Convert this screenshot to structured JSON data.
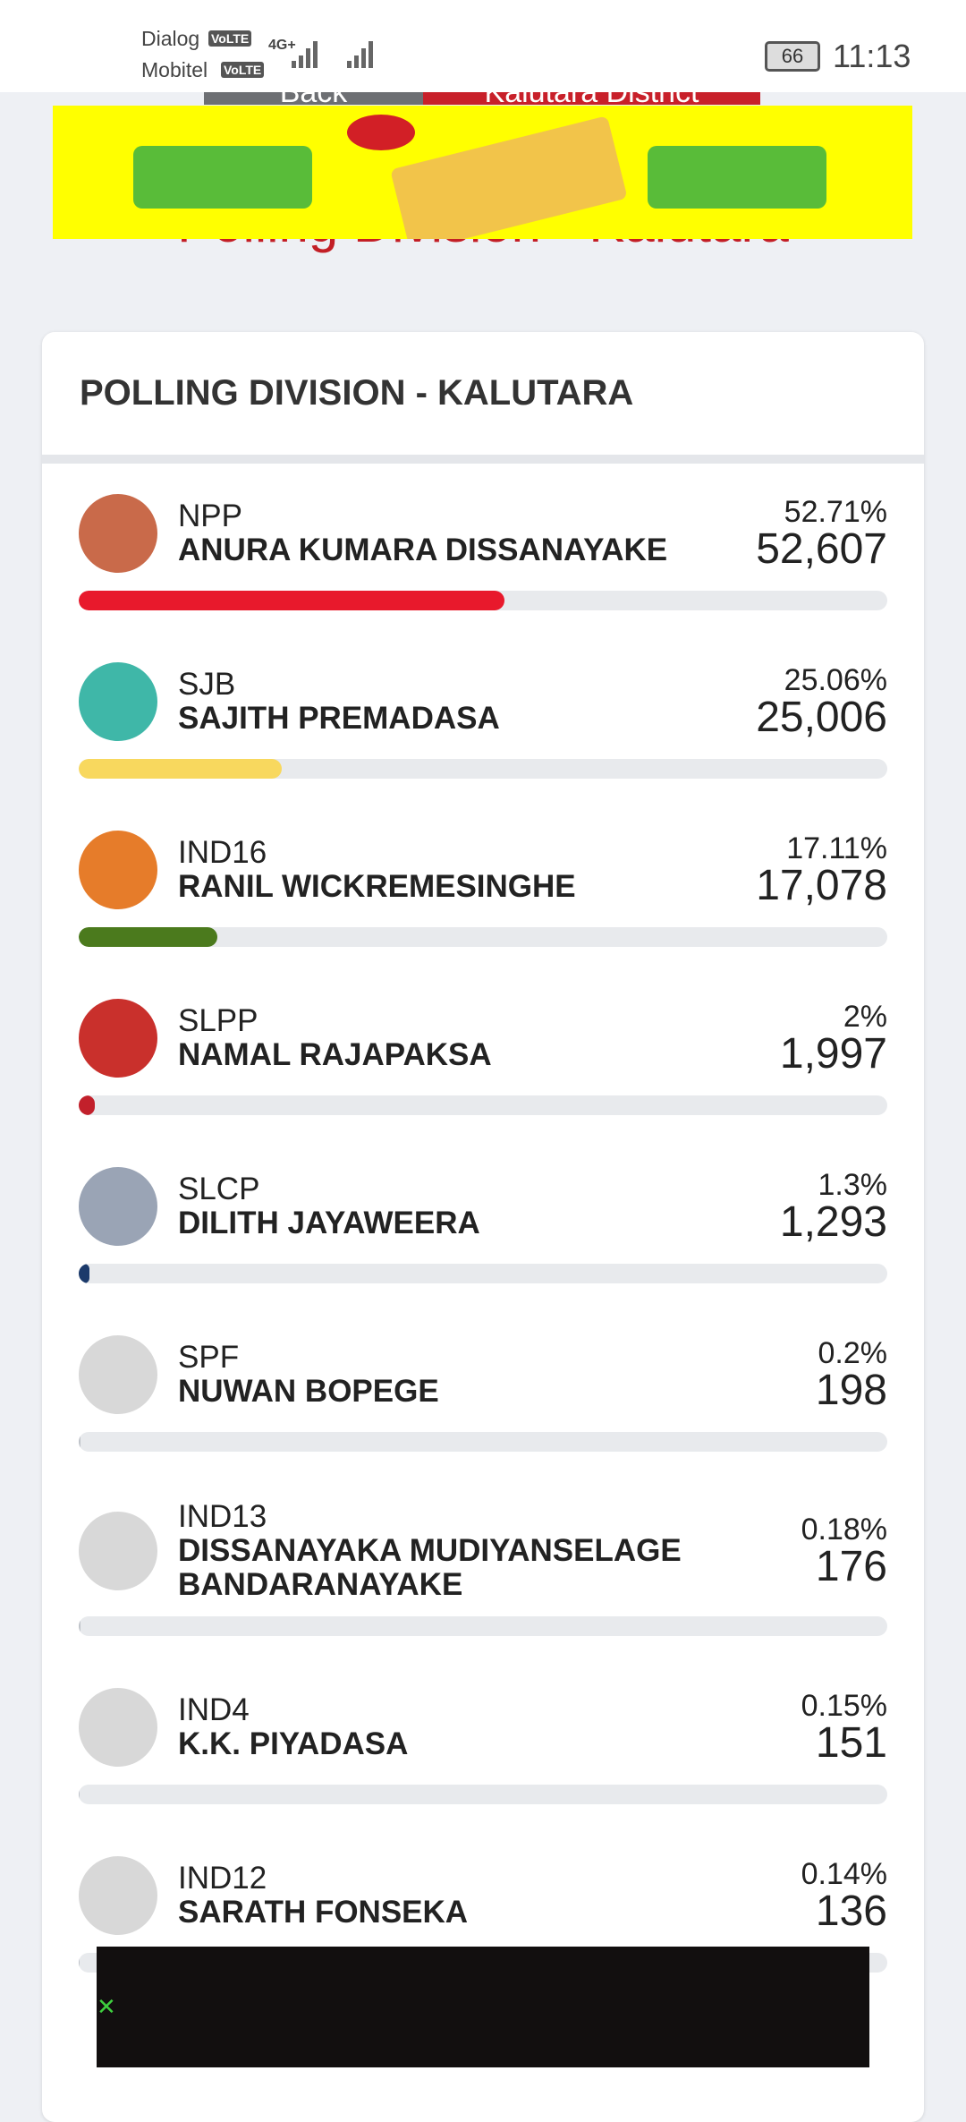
{
  "status_bar": {
    "carrier_1": "Dialog",
    "carrier_2": "Mobitel",
    "volte": "VoLTE",
    "network": "4G+",
    "battery": "66",
    "time": "11:13"
  },
  "nav": {
    "back": "Back",
    "district": "Kalutara District"
  },
  "page_title": "Polling Division - Kalutara",
  "card": {
    "title": "POLLING DIVISION - KALUTARA",
    "candidates": [
      {
        "party": "NPP",
        "name": "ANURA KUMARA DISSANAYAKE",
        "percent": 52.71,
        "percent_label": "52.71%",
        "votes": "52,607",
        "color": "#e8192c"
      },
      {
        "party": "SJB",
        "name": "SAJITH PREMADASA",
        "percent": 25.06,
        "percent_label": "25.06%",
        "votes": "25,006",
        "color": "#f8d85e"
      },
      {
        "party": "IND16",
        "name": "RANIL WICKREMESINGHE",
        "percent": 17.11,
        "percent_label": "17.11%",
        "votes": "17,078",
        "color": "#4b7a1d"
      },
      {
        "party": "SLPP",
        "name": "NAMAL RAJAPAKSA",
        "percent": 2,
        "percent_label": "2%",
        "votes": "1,997",
        "color": "#c2202b"
      },
      {
        "party": "SLCP",
        "name": "DILITH JAYAWEERA",
        "percent": 1.3,
        "percent_label": "1.3%",
        "votes": "1,293",
        "color": "#1c3a6b"
      },
      {
        "party": "SPF",
        "name": "NUWAN BOPEGE",
        "percent": 0.2,
        "percent_label": "0.2%",
        "votes": "198",
        "color": "#bfc3c9"
      },
      {
        "party": "IND13",
        "name": "DISSANAYAKA MUDIYANSELAGE BANDARANAYAKE",
        "percent": 0.18,
        "percent_label": "0.18%",
        "votes": "176",
        "color": "#bfc3c9"
      },
      {
        "party": "IND4",
        "name": "K.K. PIYADASA",
        "percent": 0.15,
        "percent_label": "0.15%",
        "votes": "151",
        "color": "#bfc3c9"
      },
      {
        "party": "IND12",
        "name": "SARATH FONSEKA",
        "percent": 0.14,
        "percent_label": "0.14%",
        "votes": "136",
        "color": "#bfc3c9"
      }
    ]
  }
}
